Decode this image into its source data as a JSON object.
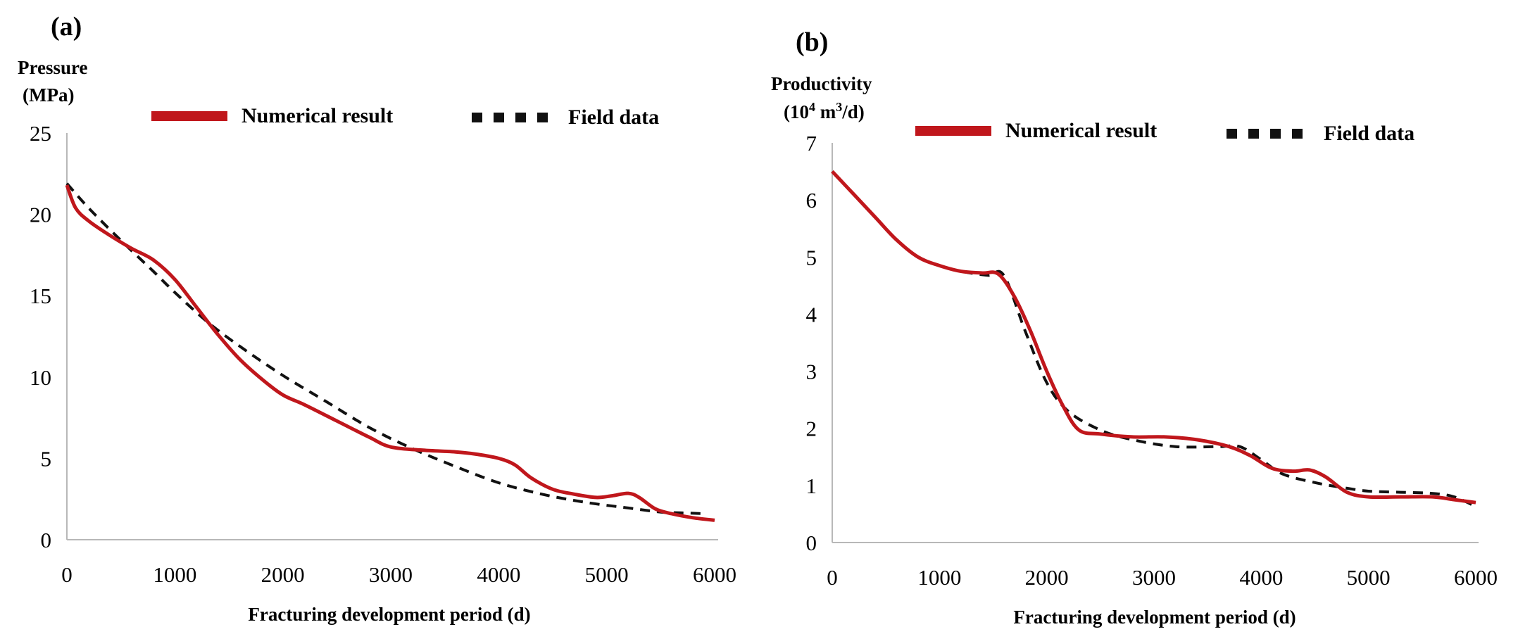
{
  "chart_data": [
    {
      "type": "line",
      "panel_label": "(a)",
      "ylabel_line1": "Pressure",
      "ylabel_line2": "(MPa)",
      "xlabel": "Fracturing development period (d)",
      "xlim": [
        0,
        6000
      ],
      "ylim": [
        0,
        25
      ],
      "xticks": [
        "0",
        "1000",
        "2000",
        "3000",
        "4000",
        "5000",
        "6000"
      ],
      "yticks": [
        "0",
        "5",
        "10",
        "15",
        "20",
        "25"
      ],
      "grid": false,
      "legend_position": "top",
      "colors": {
        "numerical": "#c0171c",
        "field": "#111111"
      },
      "series": [
        {
          "name": "Numerical result",
          "style": "solid",
          "x": [
            0,
            80,
            200,
            400,
            600,
            800,
            1000,
            1200,
            1400,
            1600,
            1800,
            2000,
            2200,
            2500,
            2800,
            3000,
            3300,
            3600,
            3800,
            4000,
            4150,
            4300,
            4500,
            4700,
            4900,
            5050,
            5200,
            5300,
            5450,
            5600,
            5800,
            6000
          ],
          "y": [
            21.8,
            20.4,
            19.6,
            18.7,
            17.9,
            17.2,
            16.0,
            14.3,
            12.6,
            11.1,
            9.9,
            8.9,
            8.3,
            7.3,
            6.3,
            5.7,
            5.5,
            5.4,
            5.25,
            5.0,
            4.6,
            3.8,
            3.1,
            2.8,
            2.6,
            2.7,
            2.85,
            2.6,
            1.9,
            1.6,
            1.35,
            1.2
          ]
        },
        {
          "name": "Field data",
          "style": "dashed",
          "x": [
            0,
            200,
            500,
            800,
            1000,
            1300,
            1600,
            2000,
            2400,
            2800,
            3200,
            3600,
            4000,
            4400,
            4800,
            5200,
            5500,
            5700,
            5900
          ],
          "y": [
            21.9,
            20.4,
            18.4,
            16.5,
            15.2,
            13.4,
            11.9,
            10.1,
            8.5,
            6.9,
            5.6,
            4.5,
            3.5,
            2.8,
            2.3,
            1.95,
            1.7,
            1.65,
            1.6
          ]
        }
      ]
    },
    {
      "type": "line",
      "panel_label": "(b)",
      "ylabel_line1": "Productivity",
      "ylabel_line2_base": "(10",
      "ylabel_line2_sup1": "4",
      "ylabel_line2_mid": " m",
      "ylabel_line2_sup2": "3",
      "ylabel_line2_end": "/d)",
      "xlabel": "Fracturing development period (d)",
      "xlim": [
        0,
        6000
      ],
      "ylim": [
        0,
        7
      ],
      "xticks": [
        "0",
        "1000",
        "2000",
        "3000",
        "4000",
        "5000",
        "6000"
      ],
      "yticks": [
        "0",
        "1",
        "2",
        "3",
        "4",
        "5",
        "6",
        "7"
      ],
      "grid": false,
      "legend_position": "top",
      "colors": {
        "numerical": "#c0171c",
        "field": "#111111"
      },
      "series": [
        {
          "name": "Numerical result",
          "style": "solid",
          "x": [
            0,
            200,
            400,
            600,
            800,
            1000,
            1200,
            1400,
            1550,
            1700,
            1850,
            2000,
            2150,
            2300,
            2500,
            2800,
            3100,
            3400,
            3700,
            3900,
            4100,
            4300,
            4450,
            4600,
            4800,
            5000,
            5300,
            5600,
            5800,
            6000
          ],
          "y": [
            6.5,
            6.1,
            5.7,
            5.3,
            5.0,
            4.85,
            4.75,
            4.72,
            4.7,
            4.3,
            3.7,
            3.0,
            2.4,
            1.97,
            1.9,
            1.85,
            1.85,
            1.8,
            1.68,
            1.52,
            1.3,
            1.25,
            1.27,
            1.15,
            0.88,
            0.8,
            0.8,
            0.8,
            0.75,
            0.7
          ]
        },
        {
          "name": "Field data",
          "style": "dashed",
          "x": [
            0,
            200,
            400,
            600,
            800,
            1000,
            1200,
            1450,
            1600,
            1800,
            2000,
            2200,
            2500,
            2800,
            3200,
            3600,
            3800,
            4000,
            4200,
            4500,
            4800,
            5000,
            5300,
            5600,
            5800,
            6000
          ],
          "y": [
            6.5,
            6.1,
            5.7,
            5.3,
            5.0,
            4.85,
            4.75,
            4.68,
            4.68,
            3.7,
            2.8,
            2.3,
            1.97,
            1.8,
            1.68,
            1.68,
            1.68,
            1.45,
            1.2,
            1.05,
            0.95,
            0.9,
            0.88,
            0.86,
            0.8,
            0.63
          ]
        }
      ]
    }
  ]
}
